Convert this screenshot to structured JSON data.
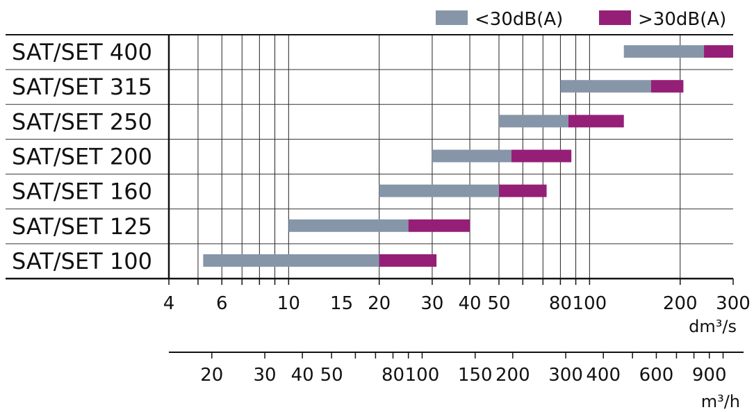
{
  "chart_data": {
    "type": "bar",
    "subtype": "horizontal-range-stacked",
    "x_scale": "log",
    "xlim": [
      4,
      300
    ],
    "categories": [
      "SAT/SET 400",
      "SAT/SET 315",
      "SAT/SET 250",
      "SAT/SET 200",
      "SAT/SET 160",
      "SAT/SET 125",
      "SAT/SET 100"
    ],
    "series": [
      {
        "name": "<30dB(A)",
        "color": "#8696a8",
        "ranges": [
          [
            130,
            240
          ],
          [
            80,
            160
          ],
          [
            50,
            85
          ],
          [
            30,
            55
          ],
          [
            20,
            50
          ],
          [
            10,
            25
          ],
          [
            5.2,
            20
          ]
        ]
      },
      {
        "name": ">30dB(A)",
        "color": "#951f77",
        "ranges": [
          [
            240,
            300
          ],
          [
            160,
            205
          ],
          [
            85,
            130
          ],
          [
            55,
            87
          ],
          [
            50,
            72
          ],
          [
            25,
            40
          ],
          [
            20,
            31
          ]
        ]
      }
    ],
    "x_ticks_major": [
      4,
      6,
      10,
      15,
      20,
      30,
      40,
      50,
      80,
      100,
      200,
      300
    ],
    "x_gridlines": [
      5,
      6,
      7,
      8,
      9,
      10,
      20,
      30,
      40,
      50,
      60,
      70,
      80,
      90,
      100,
      200
    ],
    "x_unit": "dm³/s",
    "secondary_axis": {
      "unit": "m³/h",
      "tick_labels": [
        "20",
        "30",
        "40",
        "50",
        "80",
        "100",
        "150",
        "200",
        "300",
        "400",
        "600",
        "900"
      ],
      "tick_values": [
        20,
        30,
        40,
        50,
        80,
        100,
        150,
        200,
        300,
        400,
        600,
        900
      ],
      "minor_ticks": [
        60,
        70,
        90,
        500,
        700,
        800,
        1000
      ]
    },
    "legend_position": "top-right",
    "grid": true
  }
}
